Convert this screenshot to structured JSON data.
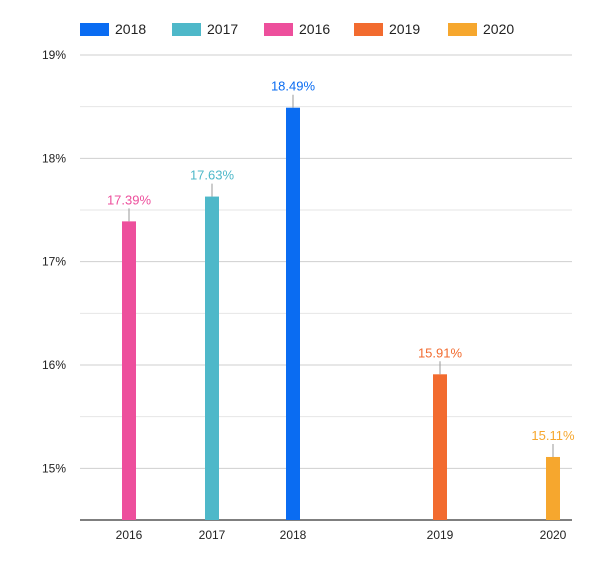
{
  "chart_data": {
    "type": "bar",
    "categories": [
      "2016",
      "2017",
      "2018",
      "2019",
      "2020"
    ],
    "series": [
      {
        "name": "2018",
        "color": "#0a6cf2",
        "values": [
          null,
          null,
          18.49,
          null,
          null
        ],
        "labels": [
          "",
          "",
          "18.49%",
          "",
          ""
        ]
      },
      {
        "name": "2017",
        "color": "#4eb8c9",
        "values": [
          null,
          17.63,
          null,
          null,
          null
        ],
        "labels": [
          "",
          "17.63%",
          "",
          "",
          ""
        ]
      },
      {
        "name": "2016",
        "color": "#ed4f9c",
        "values": [
          17.39,
          null,
          null,
          null,
          null
        ],
        "labels": [
          "17.39%",
          "",
          "",
          "",
          ""
        ]
      },
      {
        "name": "2019",
        "color": "#f26b2f",
        "values": [
          null,
          null,
          null,
          15.91,
          null
        ],
        "labels": [
          "",
          "",
          "",
          "15.91%",
          ""
        ]
      },
      {
        "name": "2020",
        "color": "#f6a72e",
        "values": [
          null,
          null,
          null,
          null,
          15.11
        ],
        "labels": [
          "",
          "",
          "",
          "",
          "15.11%"
        ]
      }
    ],
    "yticks": [
      "15%",
      "16%",
      "17%",
      "18%",
      "19%"
    ],
    "ytick_values": [
      15,
      16,
      17,
      18,
      19
    ],
    "ylim": [
      14.5,
      19
    ],
    "grid": true,
    "minor_grid": true,
    "legend_position": "top-left",
    "title": "",
    "xlabel": "",
    "ylabel": ""
  }
}
